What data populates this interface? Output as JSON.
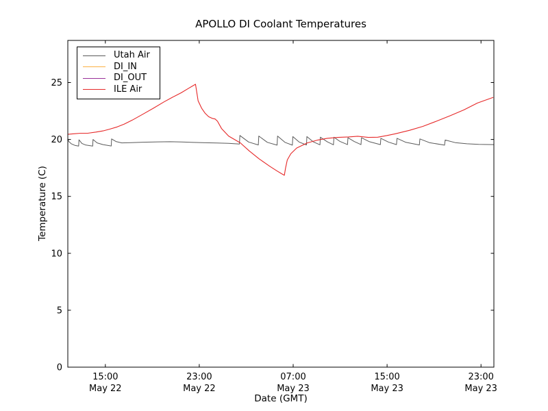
{
  "title": "APOLLO DI Coolant Temperatures",
  "chart_data": {
    "type": "line",
    "title": "APOLLO DI Coolant Temperatures",
    "xlabel": "Date (GMT)",
    "ylabel": "Temperature (C)",
    "x_unit": "hours since May 22 00:00 GMT",
    "xlim": [
      11.8,
      48.1
    ],
    "ylim": [
      0,
      28.7
    ],
    "grid": false,
    "legend_position": "upper-left",
    "y_ticks": [
      0,
      5,
      10,
      15,
      20,
      25
    ],
    "x_ticks": [
      {
        "t": 15,
        "time": "15:00",
        "date": "May 22"
      },
      {
        "t": 23,
        "time": "23:00",
        "date": "May 22"
      },
      {
        "t": 31,
        "time": "07:00",
        "date": "May 23"
      },
      {
        "t": 39,
        "time": "15:00",
        "date": "May 23"
      },
      {
        "t": 47,
        "time": "23:00",
        "date": "May 23"
      }
    ],
    "series": [
      {
        "name": "Utah Air",
        "color": "#595959",
        "points": [
          [
            11.8,
            20.05
          ],
          [
            11.9,
            19.8
          ],
          [
            12.1,
            19.62
          ],
          [
            12.4,
            19.48
          ],
          [
            12.72,
            19.42
          ],
          [
            12.75,
            19.97
          ],
          [
            13.0,
            19.65
          ],
          [
            13.3,
            19.52
          ],
          [
            13.92,
            19.42
          ],
          [
            13.95,
            20.0
          ],
          [
            14.3,
            19.7
          ],
          [
            14.8,
            19.55
          ],
          [
            15.5,
            19.43
          ],
          [
            15.53,
            20.05
          ],
          [
            15.9,
            19.82
          ],
          [
            16.4,
            19.7
          ],
          [
            17.2,
            19.72
          ],
          [
            18.2,
            19.76
          ],
          [
            19.5,
            19.79
          ],
          [
            20.5,
            19.8
          ],
          [
            21.5,
            19.78
          ],
          [
            22.5,
            19.74
          ],
          [
            23.5,
            19.71
          ],
          [
            24.5,
            19.69
          ],
          [
            25.5,
            19.66
          ],
          [
            26.42,
            19.6
          ],
          [
            26.46,
            20.35
          ],
          [
            27.2,
            19.78
          ],
          [
            28.03,
            19.52
          ],
          [
            28.07,
            20.3
          ],
          [
            28.8,
            19.75
          ],
          [
            29.63,
            19.5
          ],
          [
            29.67,
            20.3
          ],
          [
            30.3,
            19.75
          ],
          [
            30.93,
            19.5
          ],
          [
            30.97,
            20.25
          ],
          [
            31.5,
            19.78
          ],
          [
            32.13,
            19.52
          ],
          [
            32.17,
            20.25
          ],
          [
            32.7,
            19.8
          ],
          [
            33.28,
            19.53
          ],
          [
            33.32,
            20.2
          ],
          [
            33.9,
            19.8
          ],
          [
            34.43,
            19.53
          ],
          [
            34.47,
            20.2
          ],
          [
            35.0,
            19.82
          ],
          [
            35.63,
            19.55
          ],
          [
            35.67,
            20.15
          ],
          [
            36.2,
            19.82
          ],
          [
            36.78,
            19.55
          ],
          [
            36.82,
            20.15
          ],
          [
            37.5,
            19.8
          ],
          [
            38.43,
            19.55
          ],
          [
            38.47,
            20.1
          ],
          [
            39.1,
            19.78
          ],
          [
            39.8,
            19.55
          ],
          [
            39.85,
            20.1
          ],
          [
            40.6,
            19.75
          ],
          [
            41.75,
            19.52
          ],
          [
            41.8,
            20.05
          ],
          [
            42.6,
            19.72
          ],
          [
            43.9,
            19.5
          ],
          [
            43.95,
            19.95
          ],
          [
            44.8,
            19.72
          ],
          [
            45.8,
            19.62
          ],
          [
            46.8,
            19.57
          ],
          [
            48.1,
            19.55
          ]
        ]
      },
      {
        "name": "DI_IN",
        "color": "#fbb042",
        "points": []
      },
      {
        "name": "DI_OUT",
        "color": "#992f99",
        "points": []
      },
      {
        "name": "ILE Air",
        "color": "#e62727",
        "points": [
          [
            11.8,
            20.45
          ],
          [
            12.3,
            20.5
          ],
          [
            12.9,
            20.55
          ],
          [
            13.5,
            20.55
          ],
          [
            14.2,
            20.65
          ],
          [
            14.8,
            20.75
          ],
          [
            15.35,
            20.9
          ],
          [
            16.0,
            21.1
          ],
          [
            16.6,
            21.35
          ],
          [
            17.3,
            21.7
          ],
          [
            18.25,
            22.25
          ],
          [
            19.1,
            22.75
          ],
          [
            20.0,
            23.3
          ],
          [
            20.7,
            23.7
          ],
          [
            21.45,
            24.1
          ],
          [
            22.1,
            24.5
          ],
          [
            22.68,
            24.85
          ],
          [
            22.75,
            24.4
          ],
          [
            22.9,
            23.4
          ],
          [
            23.2,
            22.75
          ],
          [
            23.5,
            22.3
          ],
          [
            23.8,
            22.0
          ],
          [
            24.1,
            21.85
          ],
          [
            24.35,
            21.8
          ],
          [
            24.55,
            21.6
          ],
          [
            24.9,
            20.95
          ],
          [
            25.5,
            20.3
          ],
          [
            26.0,
            20.0
          ],
          [
            26.5,
            19.7
          ],
          [
            27.25,
            19.0
          ],
          [
            28.1,
            18.3
          ],
          [
            29.0,
            17.65
          ],
          [
            29.6,
            17.25
          ],
          [
            30.0,
            17.0
          ],
          [
            30.25,
            16.85
          ],
          [
            30.35,
            17.5
          ],
          [
            30.5,
            18.2
          ],
          [
            30.8,
            18.75
          ],
          [
            31.3,
            19.25
          ],
          [
            32.2,
            19.7
          ],
          [
            33.1,
            19.95
          ],
          [
            33.9,
            20.1
          ],
          [
            34.8,
            20.18
          ],
          [
            35.7,
            20.22
          ],
          [
            36.5,
            20.28
          ],
          [
            37.4,
            20.18
          ],
          [
            38.2,
            20.2
          ],
          [
            39.0,
            20.35
          ],
          [
            39.7,
            20.5
          ],
          [
            40.9,
            20.8
          ],
          [
            42.05,
            21.15
          ],
          [
            43.2,
            21.6
          ],
          [
            44.4,
            22.1
          ],
          [
            45.55,
            22.6
          ],
          [
            46.7,
            23.2
          ],
          [
            48.05,
            23.7
          ]
        ]
      }
    ]
  },
  "legend": {
    "entries": [
      "Utah Air",
      "DI_IN",
      "DI_OUT",
      "ILE Air"
    ]
  }
}
